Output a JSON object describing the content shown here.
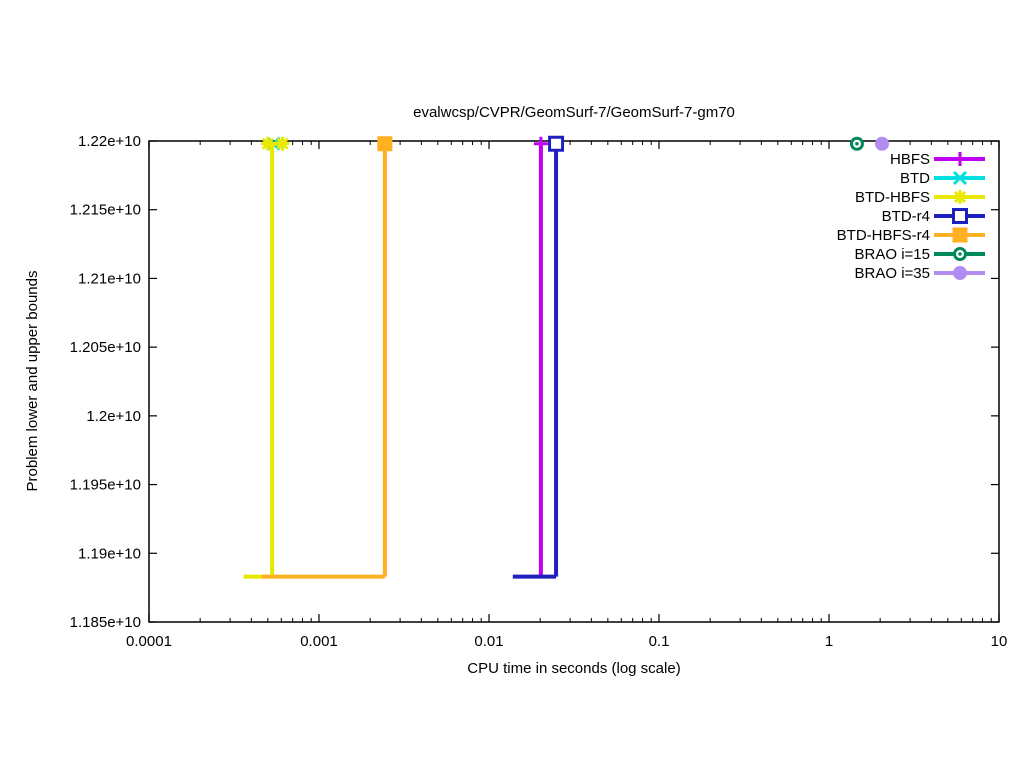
{
  "title": "evalwcsp/CVPR/GeomSurf-7/GeomSurf-7-gm70",
  "chart_data": {
    "type": "line",
    "title": "evalwcsp/CVPR/GeomSurf-7/GeomSurf-7-gm70",
    "xlabel": "CPU time in seconds (log scale)",
    "ylabel": "Problem lower and upper bounds",
    "x_scale": "log",
    "xlim": [
      0.0001,
      10
    ],
    "ylim": [
      11850000000.0,
      12200000000.0
    ],
    "grid": false,
    "legend_position": "top-right-inside",
    "x_ticks": [
      {
        "value": 0.0001,
        "label": "0.0001"
      },
      {
        "value": 0.001,
        "label": "0.001"
      },
      {
        "value": 0.01,
        "label": "0.01"
      },
      {
        "value": 0.1,
        "label": "0.1"
      },
      {
        "value": 1,
        "label": "1"
      },
      {
        "value": 10,
        "label": "10"
      }
    ],
    "y_ticks": [
      {
        "value": 11850000000.0,
        "label": "1.185e+10"
      },
      {
        "value": 11900000000.0,
        "label": "1.19e+10"
      },
      {
        "value": 11950000000.0,
        "label": "1.195e+10"
      },
      {
        "value": 12000000000.0,
        "label": "1.2e+10"
      },
      {
        "value": 12050000000.0,
        "label": "1.205e+10"
      },
      {
        "value": 12100000000.0,
        "label": "1.21e+10"
      },
      {
        "value": 12150000000.0,
        "label": "1.215e+10"
      },
      {
        "value": 12200000000.0,
        "label": "1.22e+10"
      }
    ],
    "lower_bound_value": 11883000000.0,
    "upper_bound_value": 12198000000.0,
    "series": [
      {
        "name": "HBFS",
        "color": "#c000f0",
        "marker": "plus",
        "segments": [
          [
            [
              0.0202,
              11883000000.0
            ],
            [
              0.0202,
              12198000000.0
            ]
          ]
        ],
        "points": [
          [
            0.0202,
            12198000000.0
          ]
        ]
      },
      {
        "name": "BTD",
        "color": "#00e0e0",
        "marker": "x",
        "segments": [],
        "points": [
          [
            0.00054,
            12198000000.0
          ]
        ]
      },
      {
        "name": "BTD-HBFS",
        "color": "#e8e800",
        "marker": "asterisk",
        "segments": [
          [
            [
              0.00036,
              11883000000.0
            ],
            [
              0.00053,
              11883000000.0
            ]
          ],
          [
            [
              0.00053,
              11883000000.0
            ],
            [
              0.00053,
              12198000000.0
            ]
          ],
          [
            [
              0.0005,
              12198000000.0
            ],
            [
              0.00061,
              12198000000.0
            ]
          ]
        ],
        "points": [
          [
            0.0005,
            12198000000.0
          ],
          [
            0.00061,
            12198000000.0
          ]
        ]
      },
      {
        "name": "BTD-r4",
        "color": "#2020c0",
        "marker": "open-square",
        "segments": [
          [
            [
              0.0138,
              11883000000.0
            ],
            [
              0.0248,
              11883000000.0
            ]
          ],
          [
            [
              0.0248,
              11883000000.0
            ],
            [
              0.0248,
              12198000000.0
            ]
          ]
        ],
        "points": [
          [
            0.0248,
            12198000000.0
          ]
        ]
      },
      {
        "name": "BTD-HBFS-r4",
        "color": "#ffb020",
        "marker": "filled-square",
        "segments": [
          [
            [
              0.00046,
              11883000000.0
            ],
            [
              0.00244,
              11883000000.0
            ]
          ],
          [
            [
              0.00244,
              11883000000.0
            ],
            [
              0.00244,
              12198000000.0
            ]
          ]
        ],
        "points": [
          [
            0.00244,
            12198000000.0
          ]
        ]
      },
      {
        "name": "BRAO i=15",
        "color": "#008858",
        "marker": "circled-dot",
        "segments": [],
        "points": [
          [
            1.46,
            12198000000.0
          ]
        ]
      },
      {
        "name": "BRAO i=35",
        "color": "#b28cf0",
        "marker": "filled-circle",
        "segments": [],
        "points": [
          [
            2.05,
            12198000000.0
          ]
        ]
      }
    ]
  }
}
